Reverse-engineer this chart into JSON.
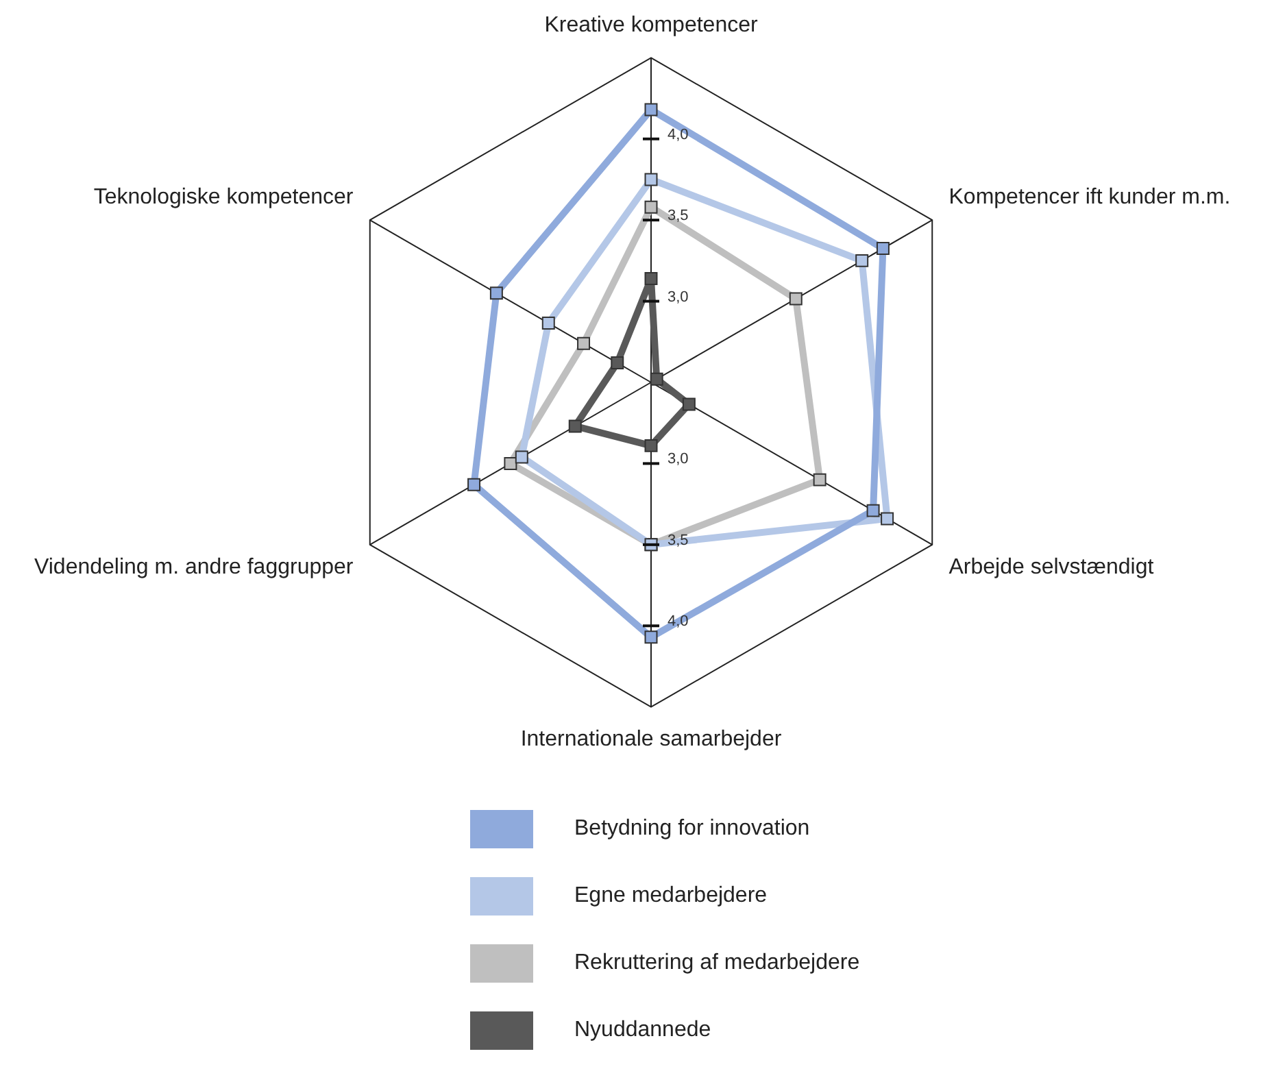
{
  "chart_data": {
    "type": "radar",
    "categories": [
      "Kreative kompetencer",
      "Kompetencer ift kunder m.m.",
      "Arbejde selvstændigt",
      "Internationale samarbejder",
      "Videndeling m. andre faggrupper",
      "Teknologiske kompetencer"
    ],
    "series": [
      {
        "name": "Betydning for innovation",
        "color": "#8faadc",
        "values": [
          4.18,
          4.15,
          4.08,
          4.07,
          3.76,
          3.6
        ]
      },
      {
        "name": "Egne medarbejdere",
        "color": "#b4c7e7",
        "values": [
          3.75,
          4.0,
          4.18,
          3.5,
          3.42,
          3.23
        ]
      },
      {
        "name": "Rekruttering af medarbejdere",
        "color": "#bfbfbf",
        "values": [
          3.58,
          3.53,
          3.7,
          3.5,
          3.5,
          2.98
        ]
      },
      {
        "name": "Nyuddannede",
        "color": "#595959",
        "values": [
          3.14,
          2.54,
          2.77,
          2.89,
          3.04,
          2.74
        ]
      }
    ],
    "ylim": [
      2.5,
      4.5
    ],
    "yticks": [
      {
        "value": 3.0,
        "label": "3,0"
      },
      {
        "value": 3.5,
        "label": "3,5"
      },
      {
        "value": 4.0,
        "label": "4,0"
      }
    ],
    "grid": false,
    "legend": "bottom",
    "marker": "square",
    "line_style": "solid"
  }
}
